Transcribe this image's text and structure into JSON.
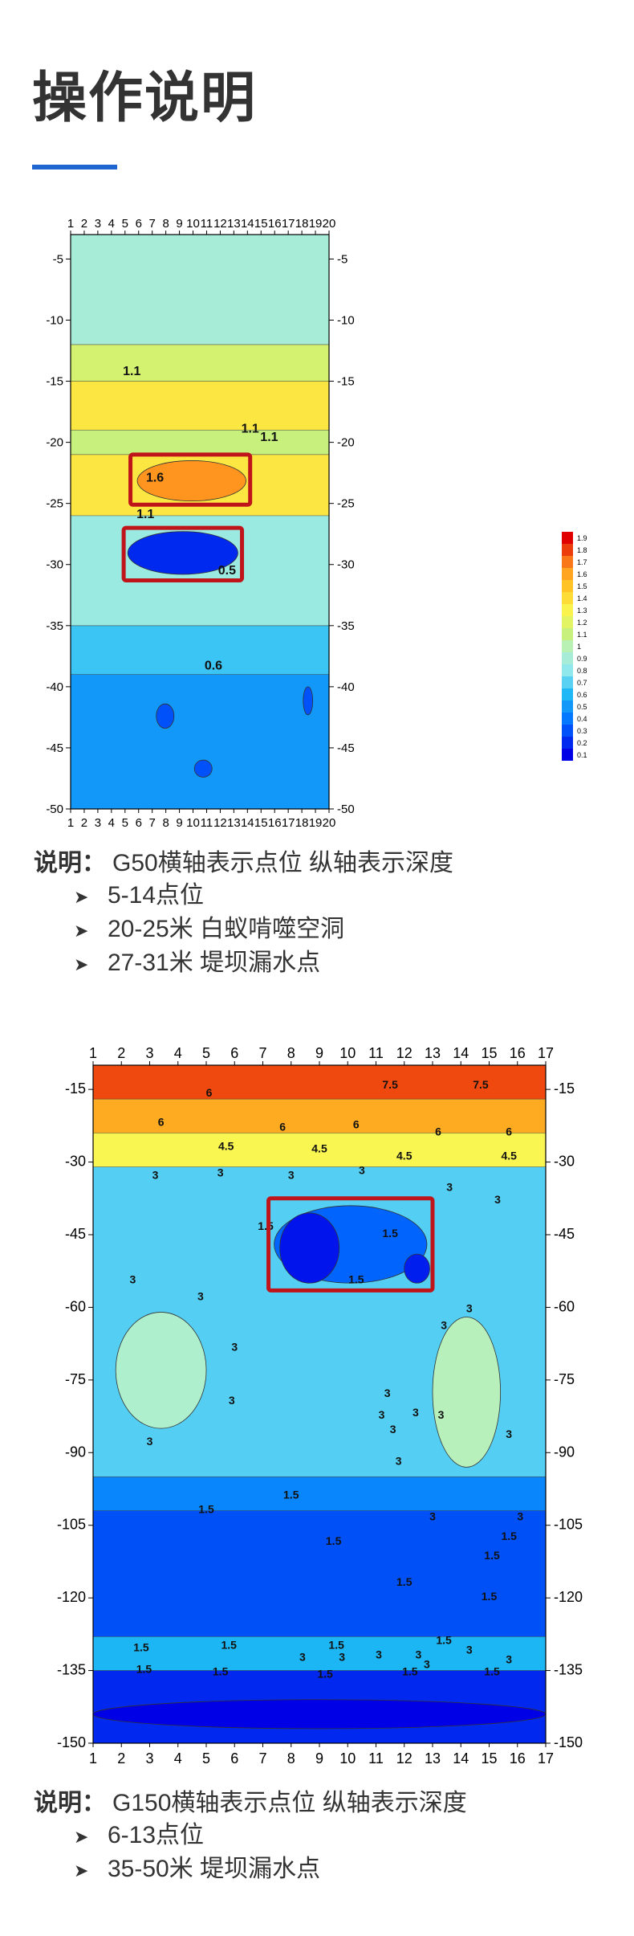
{
  "page": {
    "title": "操作说明"
  },
  "chart_data": [
    {
      "type": "heatmap",
      "x": {
        "ticks": [
          1,
          2,
          3,
          4,
          5,
          6,
          7,
          8,
          9,
          10,
          11,
          12,
          13,
          14,
          15,
          16,
          17,
          18,
          19,
          20
        ],
        "range": [
          1,
          20
        ]
      },
      "y": {
        "ticks": [
          -5,
          -10,
          -15,
          -20,
          -25,
          -30,
          -35,
          -40,
          -45,
          -50
        ],
        "range": [
          -50,
          -3
        ]
      },
      "colorbar": {
        "ticks": [
          "1.9",
          "1.8",
          "1.7",
          "1.6",
          "1.5",
          "1.4",
          "1.3",
          "1.2",
          "1.1",
          "1",
          "0.9",
          "0.8",
          "0.7",
          "0.6",
          "0.5",
          "0.4",
          "0.3",
          "0.2",
          "0.1"
        ]
      },
      "contour_labels": [
        {
          "text": "1.1",
          "x": 5.5,
          "y": -14.5
        },
        {
          "text": "1.1",
          "x": 14.2,
          "y": -19.2
        },
        {
          "text": "1.1",
          "x": 15.6,
          "y": -19.9
        },
        {
          "text": "1.6",
          "x": 7.2,
          "y": -23.2
        },
        {
          "text": "1.1",
          "x": 6.5,
          "y": -26.2
        },
        {
          "text": "0.5",
          "x": 12.5,
          "y": -30.8
        },
        {
          "text": "0.6",
          "x": 11.5,
          "y": -38.6
        }
      ],
      "highlights": [
        {
          "x0": 5.4,
          "x1": 14.2,
          "y0": -21,
          "y1": -25.1
        },
        {
          "x0": 4.9,
          "x1": 13.6,
          "y0": -27,
          "y1": -31.3
        }
      ],
      "bands": [
        {
          "y0": -3,
          "y1": -12,
          "value": 0.9
        },
        {
          "y0": -12,
          "y1": -15,
          "value": 1.15
        },
        {
          "y0": -15,
          "y1": -19,
          "value": 1.35
        },
        {
          "y0": -19,
          "y1": -21,
          "value": 1.1
        },
        {
          "y0": -21,
          "y1": -26,
          "value": 1.35
        },
        {
          "y0": -26,
          "y1": -35,
          "value": 0.85
        },
        {
          "y0": -35,
          "y1": -39,
          "value": 0.65
        },
        {
          "y0": -39,
          "y1": -50,
          "value": 0.5
        }
      ],
      "anomalies": [
        {
          "x0": 5.9,
          "x1": 13.9,
          "y0": -21.5,
          "y1": -24.8,
          "value": 1.65
        },
        {
          "x0": 5.2,
          "x1": 13.3,
          "y0": -27.3,
          "y1": -30.8,
          "value": 0.2
        },
        {
          "x0": 7.3,
          "x1": 8.6,
          "y0": -41.4,
          "y1": -43.4,
          "value": 0.3
        },
        {
          "x0": 18.1,
          "x1": 18.8,
          "y0": -40,
          "y1": -42.3,
          "value": 0.3
        },
        {
          "x0": 10.1,
          "x1": 11.4,
          "y0": -46,
          "y1": -47.4,
          "value": 0.3
        }
      ]
    },
    {
      "type": "heatmap",
      "x": {
        "ticks": [
          1,
          2,
          3,
          4,
          5,
          6,
          7,
          8,
          9,
          10,
          11,
          12,
          13,
          14,
          15,
          16,
          17
        ],
        "range": [
          1,
          17
        ]
      },
      "y": {
        "ticks": [
          -15,
          -30,
          -45,
          -60,
          -75,
          -90,
          -105,
          -120,
          -135,
          -150
        ],
        "range": [
          -150,
          -10
        ]
      },
      "contour_labels": [
        {
          "text": "6",
          "x": 5.1,
          "y": -16.5
        },
        {
          "text": "7.5",
          "x": 11.5,
          "y": -14.8
        },
        {
          "text": "7.5",
          "x": 14.7,
          "y": -14.8
        },
        {
          "text": "6",
          "x": 3.4,
          "y": -22.5
        },
        {
          "text": "6",
          "x": 7.7,
          "y": -23.5
        },
        {
          "text": "6",
          "x": 10.3,
          "y": -23
        },
        {
          "text": "6",
          "x": 13.2,
          "y": -24.5
        },
        {
          "text": "6",
          "x": 15.7,
          "y": -24.5
        },
        {
          "text": "4.5",
          "x": 5.7,
          "y": -27.5
        },
        {
          "text": "4.5",
          "x": 9.0,
          "y": -28
        },
        {
          "text": "4.5",
          "x": 12.0,
          "y": -29.5
        },
        {
          "text": "4.5",
          "x": 15.7,
          "y": -29.5
        },
        {
          "text": "3",
          "x": 3.2,
          "y": -33.5
        },
        {
          "text": "3",
          "x": 5.5,
          "y": -33
        },
        {
          "text": "3",
          "x": 8.0,
          "y": -33.5
        },
        {
          "text": "3",
          "x": 10.5,
          "y": -32.5
        },
        {
          "text": "3",
          "x": 13.6,
          "y": -36
        },
        {
          "text": "3",
          "x": 15.3,
          "y": -38.5
        },
        {
          "text": "1.5",
          "x": 7.1,
          "y": -44
        },
        {
          "text": "1.5",
          "x": 11.5,
          "y": -45.5
        },
        {
          "text": "1.5",
          "x": 10.3,
          "y": -55
        },
        {
          "text": "3",
          "x": 2.4,
          "y": -55
        },
        {
          "text": "3",
          "x": 4.8,
          "y": -58.5
        },
        {
          "text": "3",
          "x": 6.0,
          "y": -69
        },
        {
          "text": "3",
          "x": 14.3,
          "y": -61
        },
        {
          "text": "3",
          "x": 13.4,
          "y": -64.5
        },
        {
          "text": "3",
          "x": 5.9,
          "y": -80
        },
        {
          "text": "3",
          "x": 11.4,
          "y": -78.5
        },
        {
          "text": "3",
          "x": 11.2,
          "y": -83
        },
        {
          "text": "3",
          "x": 12.4,
          "y": -82.5
        },
        {
          "text": "3",
          "x": 13.3,
          "y": -83
        },
        {
          "text": "3",
          "x": 11.6,
          "y": -86
        },
        {
          "text": "3",
          "x": 15.7,
          "y": -87
        },
        {
          "text": "3",
          "x": 3.0,
          "y": -88.5
        },
        {
          "text": "3",
          "x": 11.8,
          "y": -92.5
        },
        {
          "text": "3",
          "x": 13.0,
          "y": -104
        },
        {
          "text": "3",
          "x": 16.1,
          "y": -104
        },
        {
          "text": "1.5",
          "x": 8.0,
          "y": -99.5
        },
        {
          "text": "1.5",
          "x": 5.0,
          "y": -102.5
        },
        {
          "text": "1.5",
          "x": 9.5,
          "y": -109
        },
        {
          "text": "1.5",
          "x": 15.7,
          "y": -108
        },
        {
          "text": "1.5",
          "x": 15.1,
          "y": -112
        },
        {
          "text": "1.5",
          "x": 12.0,
          "y": -117.5
        },
        {
          "text": "1.5",
          "x": 15.0,
          "y": -120.5
        },
        {
          "text": "1.5",
          "x": 2.7,
          "y": -131
        },
        {
          "text": "1.5",
          "x": 5.8,
          "y": -130.5
        },
        {
          "text": "1.5",
          "x": 9.6,
          "y": -130.5
        },
        {
          "text": "1.5",
          "x": 13.4,
          "y": -129.5
        },
        {
          "text": "3",
          "x": 8.4,
          "y": -133
        },
        {
          "text": "3",
          "x": 9.8,
          "y": -133
        },
        {
          "text": "3",
          "x": 11.1,
          "y": -132.5
        },
        {
          "text": "3",
          "x": 12.5,
          "y": -132.5
        },
        {
          "text": "3",
          "x": 14.3,
          "y": -131.5
        },
        {
          "text": "3",
          "x": 12.8,
          "y": -134.5
        },
        {
          "text": "3",
          "x": 15.7,
          "y": -133.5
        },
        {
          "text": "1.5",
          "x": 2.8,
          "y": -135.5
        },
        {
          "text": "1.5",
          "x": 5.5,
          "y": -136
        },
        {
          "text": "1.5",
          "x": 9.2,
          "y": -136.5
        },
        {
          "text": "1.5",
          "x": 12.2,
          "y": -136
        },
        {
          "text": "1.5",
          "x": 15.1,
          "y": -136
        }
      ],
      "highlights": [
        {
          "x0": 7.2,
          "x1": 13.0,
          "y0": -37.5,
          "y1": -56.5
        }
      ],
      "bands": [
        {
          "y0": -10,
          "y1": -17,
          "value": 7.0
        },
        {
          "y0": -17,
          "y1": -24,
          "value": 6.2
        },
        {
          "y0": -24,
          "y1": -31,
          "value": 5.0
        },
        {
          "y0": -31,
          "y1": -95,
          "value": 2.6
        },
        {
          "y0": -95,
          "y1": -102,
          "value": 1.6
        },
        {
          "y0": -102,
          "y1": -128,
          "value": 1.0
        },
        {
          "y0": -128,
          "y1": -135,
          "value": 2.2
        },
        {
          "y0": -135,
          "y1": -150,
          "value": 0.6
        }
      ],
      "anomalies": [
        {
          "x0": 1.8,
          "x1": 5.0,
          "y0": -61,
          "y1": -85,
          "value": 3.6
        },
        {
          "x0": 13.0,
          "x1": 15.4,
          "y0": -62,
          "y1": -93,
          "value": 3.8
        },
        {
          "x0": 7.4,
          "x1": 12.8,
          "y0": -39,
          "y1": -55,
          "value": 1.2
        },
        {
          "x0": 7.6,
          "x1": 9.7,
          "y0": -40.5,
          "y1": -55,
          "value": 0.4
        },
        {
          "x0": 12.0,
          "x1": 12.9,
          "y0": -49,
          "y1": -55,
          "value": 0.5
        },
        {
          "x0": 1.0,
          "x1": 17.0,
          "y0": -141,
          "y1": -147,
          "value": 0.2
        }
      ]
    }
  ],
  "captions": [
    {
      "label": "说明：",
      "text": "G50横轴表示点位  纵轴表示深度",
      "bullets": [
        "5-14点位",
        "20-25米  白蚁啃噬空洞",
        "27-31米  堤坝漏水点"
      ]
    },
    {
      "label": "说明：",
      "text": "G150横轴表示点位  纵轴表示深度",
      "bullets": [
        "6-13点位",
        "35-50米 堤坝漏水点"
      ]
    }
  ],
  "icons": {
    "bullet": "arrow-bullet-icon"
  },
  "colors": {
    "accent": "#1f66d1",
    "highlight": "#c0141b"
  }
}
